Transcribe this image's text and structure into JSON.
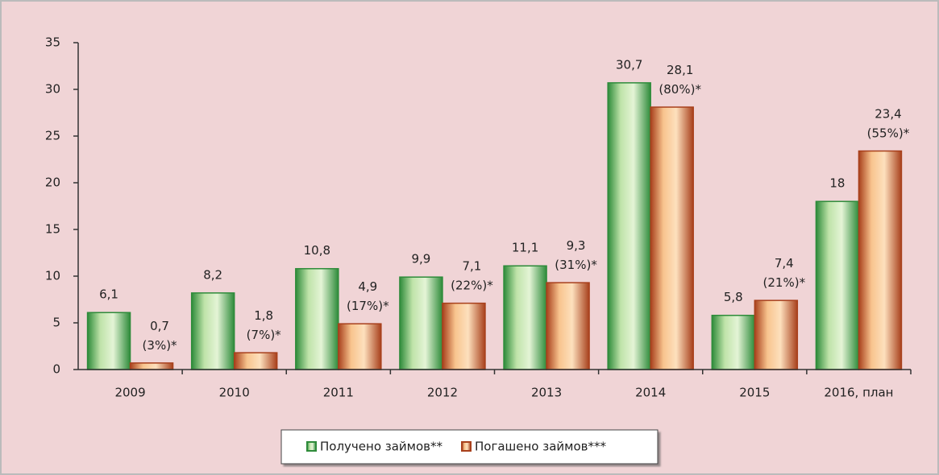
{
  "chart_data": {
    "type": "bar",
    "categories": [
      "2009",
      "2010",
      "2011",
      "2012",
      "2013",
      "2014",
      "2015",
      "2016, план"
    ],
    "series": [
      {
        "name": "Получено займов**",
        "color": "#2e8b3a",
        "values": [
          6.1,
          8.2,
          10.8,
          9.9,
          11.1,
          30.7,
          5.8,
          18
        ],
        "value_labels": [
          "6,1",
          "8,2",
          "10,8",
          "9,9",
          "11,1",
          "30,7",
          "5,8",
          "18"
        ]
      },
      {
        "name": "Погашено займов***",
        "color": "#a8401c",
        "values": [
          0.7,
          1.8,
          4.9,
          7.1,
          9.3,
          28.1,
          7.4,
          23.4
        ],
        "value_labels": [
          "0,7\n(3%)*",
          "1,8\n(7%)*",
          "4,9\n(17%)*",
          "7,1\n(22%)*",
          "9,3\n(31%)*",
          "28,1\n(80%)*",
          "7,4\n(21%)*",
          "23,4\n(55%)*"
        ]
      }
    ],
    "ylim": [
      0,
      35
    ],
    "yticks": [
      0,
      5,
      10,
      15,
      20,
      25,
      30,
      35
    ],
    "grid": false,
    "legend": "bottom"
  }
}
